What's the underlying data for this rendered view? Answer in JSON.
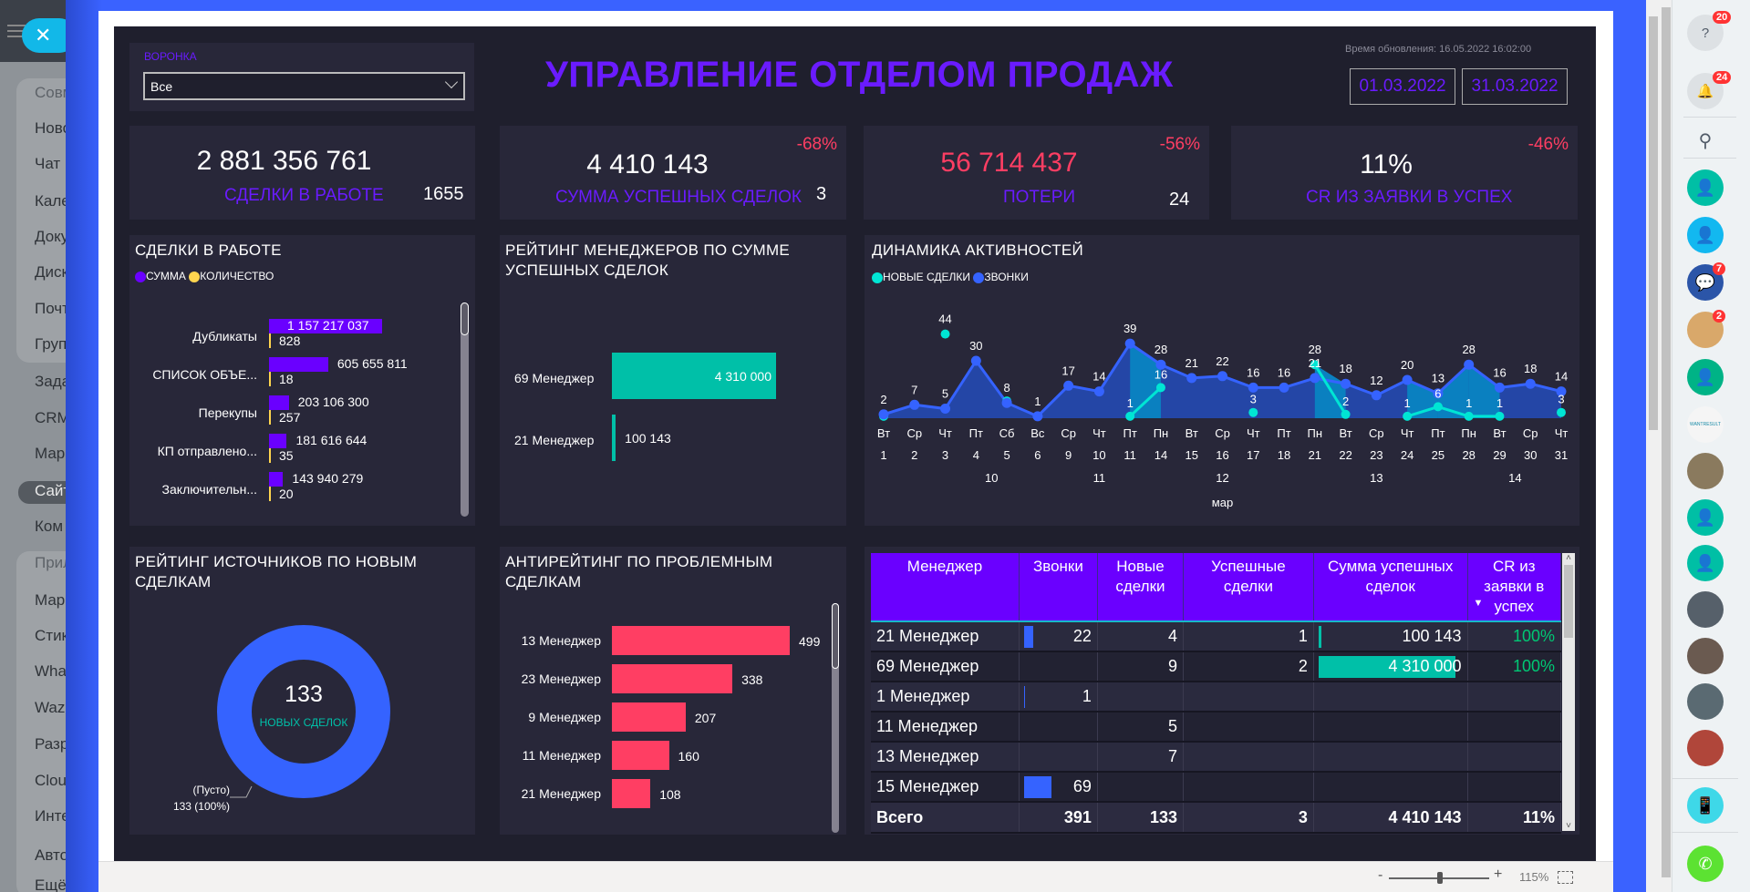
{
  "left_nav": {
    "items": [
      "Совм",
      "Ново",
      "Чат и",
      "Кале",
      "Доку",
      "Диск",
      "Почт",
      "Груп",
      "Зада",
      "CRM",
      "Мар",
      "Сайт",
      "Ком",
      "Прил",
      "Мар",
      "Стик",
      "Wha",
      "Wazz",
      "Разр",
      "Clou",
      "Инте",
      "Авто",
      "Ещё"
    ]
  },
  "header": {
    "title": "УПРАВЛЕНИЕ ОТДЕЛОМ ПРОДАЖ",
    "update_time": "Время обновления: 16.05.2022 16:02:00",
    "date_from": "01.03.2022",
    "date_to": "31.03.2022"
  },
  "funnel": {
    "label": "ВОРОНКА",
    "value": "Все"
  },
  "kpis": [
    {
      "value": "2 881 356 761",
      "label": "СДЕЛКИ В РАБОТЕ",
      "count": "1655",
      "change": ""
    },
    {
      "value": "4 410 143",
      "label": "СУММА УСПЕШНЫХ СДЕЛОК",
      "count": "3",
      "change": "-68%"
    },
    {
      "value": "56 714 437",
      "label": "ПОТЕРИ",
      "count": "24",
      "change": "-56%"
    },
    {
      "value": "11%",
      "label": "CR ИЗ ЗАЯВКИ В УСПЕХ",
      "count": "",
      "change": "-46%"
    }
  ],
  "colors": {
    "accent": "#6a1bff",
    "negative": "#ff3e63",
    "teal": "#00c0a8",
    "blue": "#3563ff",
    "cyan": "#00e5d4",
    "yellow": "#ffd54f"
  },
  "chart_data": [
    {
      "type": "bar",
      "title": "СДЕЛКИ В РАБОТЕ",
      "legend": [
        "СУММА",
        "КОЛИЧЕСТВО"
      ],
      "categories": [
        "Дубликаты",
        "СПИСОК ОБЪЕ...",
        "Перекупы",
        "КП отправлено...",
        "Заключительн..."
      ],
      "series": [
        {
          "name": "СУММА",
          "values": [
            1157217037,
            605655811,
            203106300,
            181616644,
            143940279
          ],
          "labels": [
            "1 157 217 037",
            "605 655 811",
            "203 106 300",
            "181 616 644",
            "143 940 279"
          ]
        },
        {
          "name": "КОЛИЧЕСТВО",
          "values": [
            828,
            18,
            257,
            35,
            20
          ]
        }
      ]
    },
    {
      "type": "bar",
      "title": "РЕЙТИНГ МЕНЕДЖЕРОВ ПО СУММЕ УСПЕШНЫХ СДЕЛОК",
      "categories": [
        "69 Менеджер",
        "21 Менеджер"
      ],
      "values": [
        4310000,
        100143
      ],
      "labels": [
        "4 310 000",
        "100 143"
      ]
    },
    {
      "type": "line",
      "title": "ДИНАМИКА АКТИВНОСТЕЙ",
      "legend": [
        "НОВЫЕ СДЕЛКИ",
        "ЗВОНКИ"
      ],
      "x_weekday": [
        "Вт",
        "Ср",
        "Чт",
        "Пт",
        "Сб",
        "Вс",
        "Ср",
        "Чт",
        "Пт",
        "Пн",
        "Вт",
        "Ср",
        "Чт",
        "Пт",
        "Пн",
        "Вт",
        "Ср",
        "Чт",
        "Пт",
        "Пн",
        "Вт",
        "Ср",
        "Чт"
      ],
      "x_day": [
        "1",
        "2",
        "3",
        "4",
        "5",
        "6",
        "9",
        "10",
        "11",
        "14",
        "15",
        "16",
        "17",
        "18",
        "21",
        "22",
        "23",
        "24",
        "25",
        "28",
        "29",
        "30",
        "31"
      ],
      "weeks": [
        {
          "label": "10",
          "at": 3.5
        },
        {
          "label": "11",
          "at": 7
        },
        {
          "label": "12",
          "at": 11
        },
        {
          "label": "13",
          "at": 16
        },
        {
          "label": "14",
          "at": 20.5
        }
      ],
      "month": {
        "label": "мар",
        "at": 11
      },
      "series": [
        {
          "name": "ЗВОНКИ",
          "values": [
            2,
            7,
            5,
            30,
            8,
            1,
            17,
            14,
            39,
            28,
            21,
            22,
            16,
            16,
            21,
            18,
            12,
            20,
            13,
            28,
            16,
            18,
            14
          ]
        },
        {
          "name": "НОВЫЕ СДЕЛКИ",
          "values": [
            1,
            null,
            44,
            null,
            9,
            null,
            17,
            null,
            1,
            16,
            null,
            null,
            3,
            null,
            28,
            2,
            null,
            1,
            6,
            1,
            1,
            null,
            3
          ],
          "labeled": [
            false,
            false,
            true,
            false,
            false,
            false,
            false,
            false,
            true,
            true,
            false,
            false,
            true,
            false,
            true,
            true,
            false,
            true,
            true,
            true,
            true,
            false,
            true
          ]
        }
      ],
      "ylim": [
        0,
        50
      ]
    },
    {
      "type": "pie",
      "title": "РЕЙТИНГ ИСТОЧНИКОВ ПО НОВЫМ СДЕЛКАМ",
      "center_value": "133",
      "center_label": "НОВЫХ СДЕЛОК",
      "slices": [
        {
          "name": "(Пусто)",
          "value": 133,
          "label": "133 (100%)"
        }
      ]
    },
    {
      "type": "bar",
      "title": "АНТИРЕЙТИНГ ПО ПРОБЛЕМНЫМ СДЕЛКАМ",
      "categories": [
        "13 Менеджер",
        "23 Менеджер",
        "9 Менеджер",
        "11 Менеджер",
        "21 Менеджер"
      ],
      "values": [
        499,
        338,
        207,
        160,
        108
      ]
    }
  ],
  "table": {
    "headers": [
      "Менеджер",
      "Звонки",
      "Новые сделки",
      "Успешные сделки",
      "Сумма успешных сделок",
      "CR из заявки в успех"
    ],
    "rows": [
      [
        "21 Менеджер",
        "22",
        "4",
        "1",
        "100 143",
        "100%"
      ],
      [
        "69 Менеджер",
        "",
        "9",
        "2",
        "4 310 000",
        "100%"
      ],
      [
        "1 Менеджер",
        "1",
        "",
        "",
        "",
        ""
      ],
      [
        "11 Менеджер",
        "",
        "5",
        "",
        "",
        ""
      ],
      [
        "13 Менеджер",
        "",
        "7",
        "",
        "",
        ""
      ],
      [
        "15 Менеджер",
        "69",
        "",
        "",
        "",
        ""
      ]
    ],
    "calls_bar": [
      22,
      0,
      1,
      0,
      0,
      69
    ],
    "sum_bar": [
      100143,
      4310000,
      0,
      0,
      0,
      0
    ],
    "total": [
      "Всего",
      "391",
      "133",
      "3",
      "4 410 143",
      "11%"
    ]
  },
  "zoom": {
    "minus": "-",
    "plus": "+",
    "level": "115%"
  },
  "right_panel": {
    "badges": {
      "help": "20",
      "notifications": "24",
      "chat": "7",
      "group": "2"
    },
    "wantresult": "WANTRESULT"
  }
}
